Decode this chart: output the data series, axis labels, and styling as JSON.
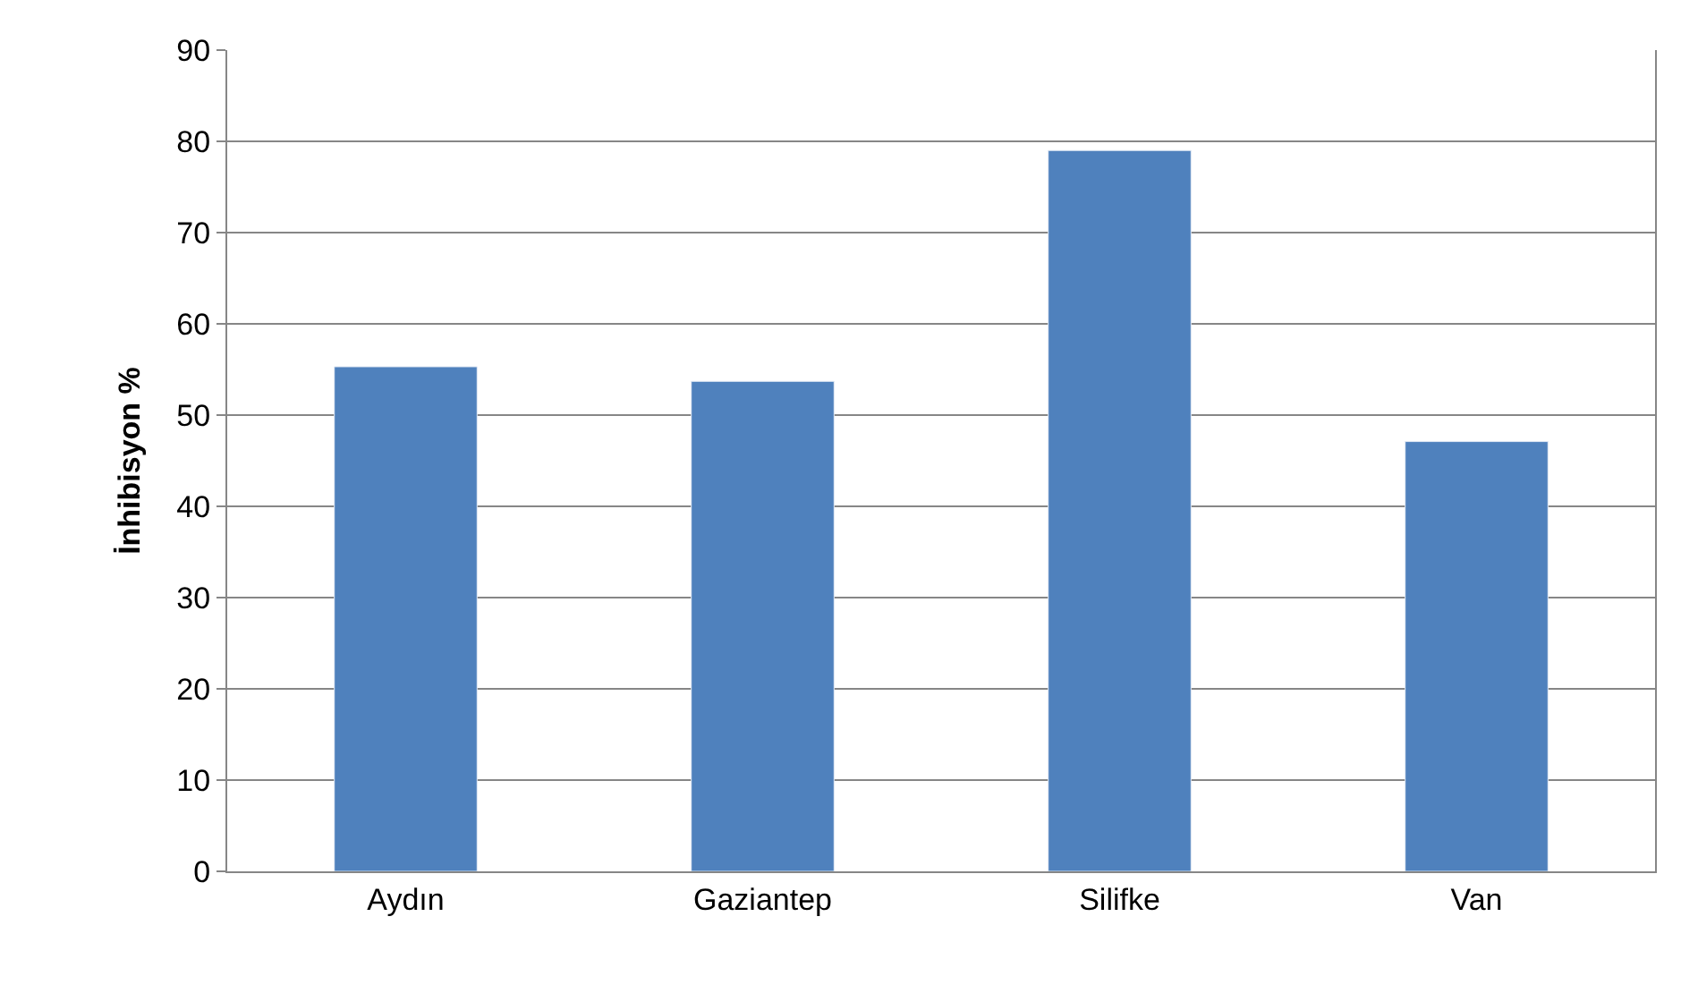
{
  "chart_data": {
    "type": "bar",
    "ylabel": "İnhibisyon %",
    "categories": [
      "Aydın",
      "Gaziantep",
      "Silifke",
      "Van"
    ],
    "values": [
      55.3,
      53.7,
      79,
      47.1
    ],
    "color": "#4f81bd",
    "ylim": [
      0,
      90
    ],
    "yticks": [
      0,
      10,
      20,
      30,
      40,
      50,
      60,
      70,
      80,
      90
    ],
    "grid": "y"
  }
}
